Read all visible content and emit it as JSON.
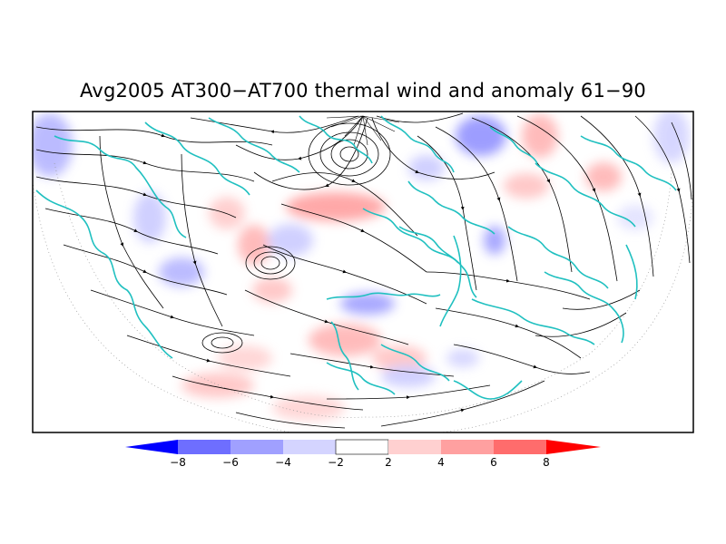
{
  "title": "Avg2005 AT300−AT700 thermal wind and anomaly 61−90",
  "colorbar": {
    "labels": [
      "−8",
      "−6",
      "−4",
      "−2",
      "2",
      "4",
      "6",
      "8"
    ],
    "colors": [
      "#0000ff",
      "#6e6eff",
      "#a0a0ff",
      "#d4d4ff",
      "#ffffff",
      "#ffd0d0",
      "#ffa0a0",
      "#ff6c6c",
      "#ff0000"
    ]
  },
  "map_colors": {
    "coastline": "#20c0c0",
    "streamline": "#000000",
    "positive_anomaly": "#ffb0b0",
    "negative_anomaly": "#b0b0ff"
  }
}
